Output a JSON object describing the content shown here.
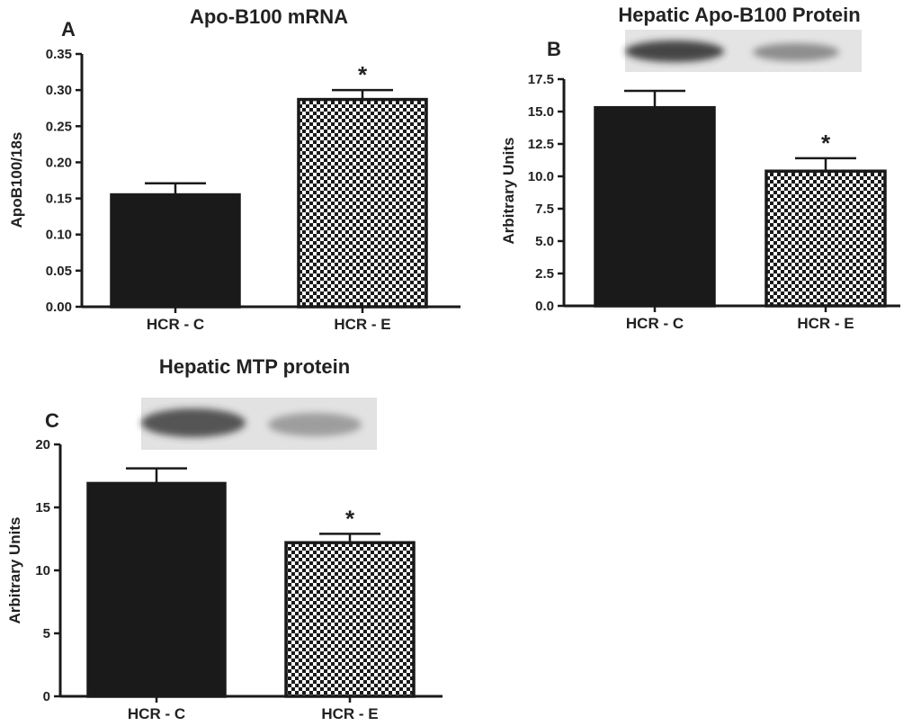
{
  "colors": {
    "ink": "#1a1a1a",
    "fill_control": "#1a1a1a",
    "fill_exercise": "checkerboard"
  },
  "chart_data": [
    {
      "panel": "A",
      "type": "bar",
      "title": "Apo-B100 mRNA",
      "ylabel": "ApoB100/18s",
      "xlabel": "",
      "categories": [
        "HCR - C",
        "HCR - E"
      ],
      "values": [
        0.155,
        0.287
      ],
      "errors": [
        0.016,
        0.013
      ],
      "significance": [
        "",
        "*"
      ],
      "ylim": [
        0,
        0.35
      ],
      "yticks": [
        "0.00",
        "0.05",
        "0.10",
        "0.15",
        "0.20",
        "0.25",
        "0.30",
        "0.35"
      ],
      "grid": false,
      "blot": false
    },
    {
      "panel": "B",
      "type": "bar",
      "title": "Hepatic Apo-B100 Protein",
      "ylabel": "Arbitrary Units",
      "xlabel": "",
      "categories": [
        "HCR - C",
        "HCR - E"
      ],
      "values": [
        15.3,
        10.4
      ],
      "errors": [
        1.3,
        1.0
      ],
      "significance": [
        "",
        "*"
      ],
      "ylim": [
        0,
        17.5
      ],
      "yticks": [
        "0.0",
        "2.5",
        "5.0",
        "7.5",
        "10.0",
        "12.5",
        "15.0",
        "17.5"
      ],
      "grid": false,
      "blot": true
    },
    {
      "panel": "C",
      "type": "bar",
      "title": "Hepatic MTP protein",
      "ylabel": "Arbitrary Units",
      "xlabel": "",
      "categories": [
        "HCR - C",
        "HCR - E"
      ],
      "values": [
        16.9,
        12.2
      ],
      "errors": [
        1.2,
        0.7
      ],
      "significance": [
        "",
        "*"
      ],
      "ylim": [
        0,
        20
      ],
      "yticks": [
        "0",
        "5",
        "10",
        "15",
        "20"
      ],
      "grid": false,
      "blot": true
    }
  ]
}
